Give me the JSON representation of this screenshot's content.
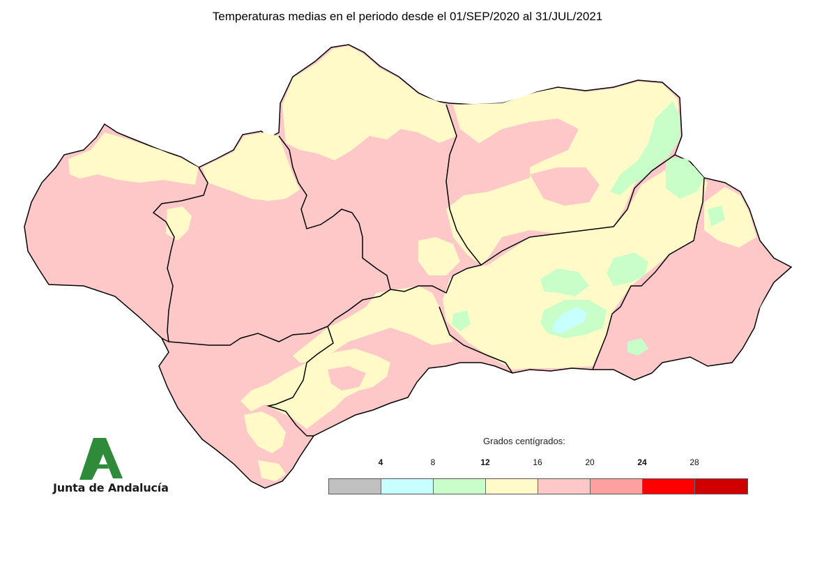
{
  "title": "Temperaturas medias en el periodo desde el 01/SEP/2020 al 31/JUL/2021",
  "logo": {
    "text": "Junta de Andalucía",
    "color": "#2e8b3a"
  },
  "legend": {
    "title": "Grados centígrados:",
    "ticks": [
      {
        "label": "4",
        "bold": true
      },
      {
        "label": "8",
        "bold": false
      },
      {
        "label": "12",
        "bold": true
      },
      {
        "label": "16",
        "bold": false
      },
      {
        "label": "20",
        "bold": false
      },
      {
        "label": "24",
        "bold": true
      },
      {
        "label": "28",
        "bold": false
      }
    ],
    "colors": [
      "#c0c0c0",
      "#c8ffff",
      "#c8ffc8",
      "#fffac8",
      "#ffc8c8",
      "#ffa0a0",
      "#ff0000",
      "#d00000"
    ]
  },
  "map": {
    "fill_colors": {
      "warm": "#ffc8c8",
      "mild": "#fffac8",
      "cool": "#c8ffc8",
      "cold": "#c8ffff",
      "hot": "#ffa0a0"
    },
    "border_color": "#000000"
  }
}
